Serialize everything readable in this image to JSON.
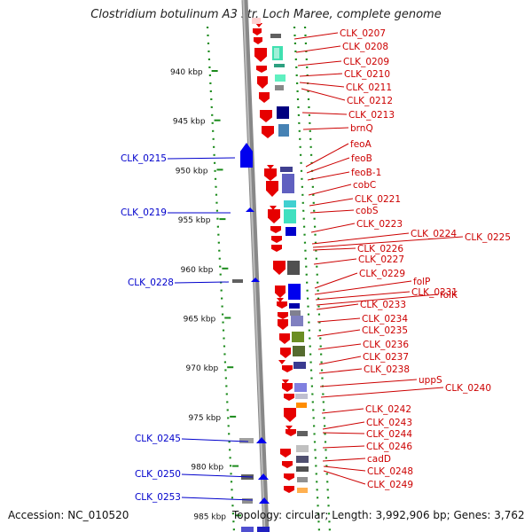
{
  "title": "Clostridium botulinum A3 str. Loch Maree, complete genome",
  "footer": {
    "accession": "Accession: NC_010520",
    "topology": "Topology: circular; Length: 3,992,906 bp; Genes: 3,762"
  },
  "scale": {
    "ticks": [
      "940 kbp",
      "945 kbp",
      "950 kbp",
      "955 kbp",
      "960 kbp",
      "965 kbp",
      "970 kbp",
      "975 kbp",
      "980 kbp",
      "985 kbp"
    ]
  },
  "colors": {
    "forward_cds": "#e60000",
    "reverse_cds": "#0000ee",
    "label_red": "#cc0000",
    "label_blue": "#0000cc",
    "backbone": "#888888",
    "scale_dots": "#1a8a1a"
  },
  "left_labels": [
    "CLK_0215",
    "CLK_0219",
    "CLK_0228",
    "CLK_0245",
    "CLK_0250",
    "CLK_0253"
  ],
  "right_labels": [
    "CLK_0207",
    "CLK_0208",
    "CLK_0209",
    "CLK_0210",
    "CLK_0211",
    "CLK_0212",
    "CLK_0213",
    "brnQ",
    "feoA",
    "feoB",
    "feoB-1",
    "cobC",
    "CLK_0221",
    "cobS",
    "CLK_0223",
    "CLK_0224",
    "CLK_0225",
    "CLK_0226",
    "CLK_0227",
    "CLK_0229",
    "folP",
    "CLK_0231",
    "folK",
    "CLK_0233",
    "CLK_0234",
    "CLK_0235",
    "CLK_0236",
    "CLK_0237",
    "CLK_0238",
    "uppS",
    "CLK_0240",
    "CLK_0242",
    "CLK_0243",
    "CLK_0244",
    "CLK_0246",
    "cadD",
    "CLK_0248",
    "CLK_0249"
  ]
}
